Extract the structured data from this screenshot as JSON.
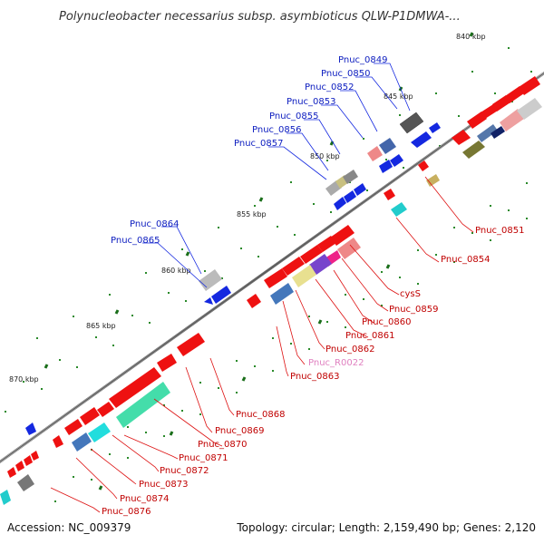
{
  "title": "Polynucleobacter necessarius subsp. asymbioticus QLW-P1DMWA-...",
  "footer": {
    "accession": "Accession: NC_009379",
    "summary": "Topology: circular; Length: 2,159,490 bp; Genes: 2,120"
  },
  "ticks": [
    "840 kbp",
    "845 kbp",
    "850 kbp",
    "855 kbp",
    "860 kbp",
    "865 kbp",
    "870 kbp"
  ],
  "labels_outer": [
    "Pnuc_0849",
    "Pnuc_0850",
    "Pnuc_0852",
    "Pnuc_0853",
    "Pnuc_0855",
    "Pnuc_0856",
    "Pnuc_0857",
    "Pnuc_0864",
    "Pnuc_0865"
  ],
  "labels_inner": [
    "Pnuc_0851",
    "Pnuc_0854",
    "cysS",
    "Pnuc_0859",
    "Pnuc_0860",
    "Pnuc_0861",
    "Pnuc_0862",
    "Pnuc_R0022",
    "Pnuc_0863",
    "Pnuc_0868",
    "Pnuc_0869",
    "Pnuc_0870",
    "Pnuc_0871",
    "Pnuc_0872",
    "Pnuc_0873",
    "Pnuc_0874",
    "Pnuc_0876"
  ],
  "colors": {
    "backbone": "#888888",
    "forward_gene": "#1428e0",
    "reverse_gene": "#ee1111",
    "tick": "#228822"
  }
}
